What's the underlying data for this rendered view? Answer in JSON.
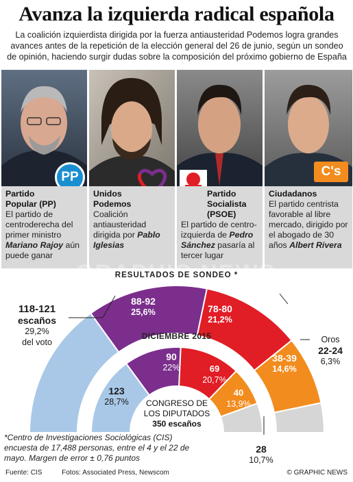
{
  "header": {
    "title": "Avanza la izquierda radical española",
    "subtitle": "La coalición izquierdista dirigida por la fuerza antiausteridad Podemos logra grandes avances antes de la repetición de la elección general del 26 de junio, según un sondeo de opinión, haciendo surgir dudas sobre la composición del próximo gobierno de España"
  },
  "parties": [
    {
      "name_line1": "Partido",
      "name_line2": "Popular (PP)",
      "desc_pre": "El partido de centroderecha del primer ministro ",
      "leader": "Mariano Rajoy",
      "desc_post": " aún puede ganar",
      "logo": "PP",
      "color": "#1a8fd0"
    },
    {
      "name_line1": "Unidos",
      "name_line2": "Podemos",
      "desc_pre": "Coalición antiausteridad dirigida por ",
      "leader": "Pablo Iglesias",
      "desc_post": "",
      "logo": "heart-logo",
      "color": "#6c2b8f"
    },
    {
      "name_line1": "Partido",
      "name_line2": "Socialista (PSOE)",
      "desc_pre": "El partido de centro-izquierda de ",
      "leader": "Pedro Sánchez",
      "desc_post": " pasaría al tercer lugar",
      "logo": "rose-logo",
      "color": "#e41e26"
    },
    {
      "name_line1": "Ciudadanos",
      "name_line2": "",
      "desc_pre": "El partido centrista favorable al libre mercado, dirigido por el abogado de 30 años ",
      "leader": "Albert Rivera",
      "desc_post": "",
      "logo": "C's",
      "color": "#f28c1e"
    }
  ],
  "watermark": "GRAPHIC NEWS",
  "results_title": "RESULTADOS DE SONDEO *",
  "december_title": "DICIEMBRE 2015",
  "chart_data": [
    {
      "type": "pie",
      "title": "RESULTADOS DE SONDEO *",
      "categories": [
        "PP",
        "Unidos Podemos",
        "PSOE",
        "Ciudadanos",
        "Otros"
      ],
      "series": [
        {
          "name": "Escaños",
          "values": [
            "118-121",
            "88-92",
            "78-80",
            "38-39",
            "22-24"
          ]
        },
        {
          "name": "Voto",
          "values": [
            "29,2%",
            "25,6%",
            "21,2%",
            "14,6%",
            "6,3%"
          ]
        }
      ],
      "values": [
        29.2,
        25.6,
        21.2,
        14.6,
        6.3
      ],
      "colors": [
        "#a9c8e8",
        "#7b2e8c",
        "#e11d25",
        "#f28c1e",
        "#d6d6d6"
      ]
    },
    {
      "type": "pie",
      "title": "DICIEMBRE 2015",
      "categories": [
        "PP",
        "Podemos",
        "PSOE",
        "Ciudadanos",
        "Otros"
      ],
      "series": [
        {
          "name": "Escaños",
          "values": [
            123,
            69,
            90,
            40,
            28
          ]
        },
        {
          "name": "Voto",
          "values": [
            "28,7%",
            "20,7%",
            "22%",
            "13,9%",
            "10,7%"
          ]
        }
      ],
      "values": [
        28.7,
        20.7,
        22.0,
        13.9,
        10.7
      ],
      "colors": [
        "#a9c8e8",
        "#7b2e8c",
        "#e11d25",
        "#f28c1e",
        "#d6d6d6"
      ]
    }
  ],
  "labels": {
    "pp_seats": "118-121",
    "pp_seats_word": "escaños",
    "pp_vote": "29,2%",
    "pp_vote_word": "del voto",
    "up_seats": "88-92",
    "up_pct": "25,6%",
    "psoe_seats": "78-80",
    "psoe_pct": "21,2%",
    "cs_seats": "38-39",
    "cs_pct": "14,6%",
    "otros_word": "Oros",
    "otros_seats": "22-24",
    "otros_pct": "6,3%",
    "dec_psoe_seats": "90",
    "dec_psoe_pct": "22%",
    "dec_pod_seats": "69",
    "dec_pod_pct": "20,7%",
    "dec_pp_seats": "123",
    "dec_pp_pct": "28,7%",
    "dec_cs_seats": "40",
    "dec_cs_pct": "13,9%",
    "dec_otros_seats": "28",
    "dec_otros_pct": "10,7%"
  },
  "congreso": {
    "line1": "CONGRESO DE",
    "line2": "LOS DIPUTADOS",
    "line3": "350 escaños"
  },
  "footnote": "*Centro de Investigaciones Sociológicas (CIS) encuesta de 17,488 personas, entre el 4 y el 22 de mayo. Margen de error ± 0,76 puntos",
  "footer": {
    "source": "Fuente: CIS",
    "photos": "Fotos: Associated Press, Newscom",
    "copyright": "© GRAPHIC NEWS"
  }
}
